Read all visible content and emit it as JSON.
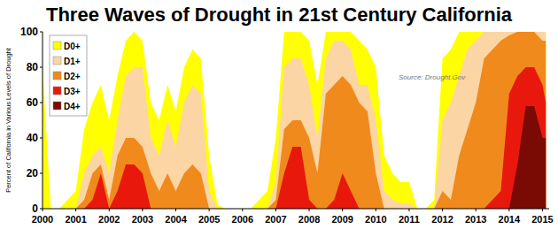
{
  "chart_data": {
    "type": "area",
    "title": "Three Waves of Drought in 21st Century California",
    "y_label": "Percent of California in Various Levels of Drought",
    "source": "Source: Drought.Gov",
    "stacked": false,
    "grid": false,
    "legend": "upper left",
    "x": [
      2000,
      2000.25,
      2000.5,
      2000.75,
      2001,
      2001.25,
      2001.5,
      2001.75,
      2002,
      2002.25,
      2002.5,
      2002.75,
      2003,
      2003.25,
      2003.5,
      2003.75,
      2004,
      2004.25,
      2004.5,
      2004.75,
      2005,
      2005.25,
      2005.5,
      2005.75,
      2006,
      2006.25,
      2006.5,
      2006.75,
      2007,
      2007.25,
      2007.5,
      2007.75,
      2008,
      2008.25,
      2008.5,
      2008.75,
      2009,
      2009.25,
      2009.5,
      2009.75,
      2010,
      2010.25,
      2010.5,
      2010.75,
      2011,
      2011.25,
      2011.5,
      2011.75,
      2012,
      2012.25,
      2012.5,
      2012.75,
      2013,
      2013.25,
      2013.5,
      2013.75,
      2014,
      2014.25,
      2014.5,
      2014.75,
      2015,
      2015.1
    ],
    "xlim": [
      2000,
      2015.2
    ],
    "xticks": [
      2000,
      2001,
      2002,
      2003,
      2004,
      2005,
      2006,
      2007,
      2008,
      2009,
      2010,
      2011,
      2012,
      2013,
      2014,
      2015
    ],
    "ylim": [
      0,
      100
    ],
    "yticks": [
      0,
      20,
      40,
      60,
      80,
      100
    ],
    "series": [
      {
        "name": "D0+",
        "color": "#ffff00",
        "values": [
          80,
          0,
          0,
          5,
          10,
          45,
          60,
          70,
          50,
          75,
          95,
          100,
          95,
          60,
          50,
          70,
          55,
          80,
          90,
          85,
          30,
          2,
          0,
          0,
          0,
          0,
          5,
          10,
          40,
          100,
          100,
          100,
          95,
          70,
          100,
          100,
          100,
          100,
          95,
          90,
          80,
          30,
          20,
          15,
          15,
          0,
          0,
          5,
          85,
          90,
          100,
          100,
          100,
          100,
          100,
          100,
          100,
          100,
          100,
          100,
          100,
          100
        ]
      },
      {
        "name": "D1+",
        "color": "#fcd5a4",
        "values": [
          0,
          0,
          0,
          0,
          0,
          20,
          30,
          35,
          20,
          50,
          75,
          80,
          80,
          40,
          30,
          50,
          35,
          60,
          70,
          65,
          10,
          0,
          0,
          0,
          0,
          0,
          0,
          0,
          15,
          80,
          85,
          85,
          70,
          40,
          85,
          95,
          95,
          90,
          70,
          70,
          50,
          10,
          5,
          3,
          3,
          0,
          0,
          0,
          50,
          60,
          75,
          90,
          95,
          100,
          100,
          100,
          100,
          100,
          100,
          100,
          100,
          100
        ]
      },
      {
        "name": "D2+",
        "color": "#f08a1c",
        "values": [
          0,
          0,
          0,
          0,
          0,
          5,
          20,
          25,
          5,
          30,
          40,
          40,
          35,
          20,
          10,
          20,
          10,
          20,
          25,
          20,
          0,
          0,
          0,
          0,
          0,
          0,
          0,
          0,
          5,
          45,
          50,
          50,
          40,
          20,
          65,
          70,
          75,
          70,
          60,
          55,
          20,
          0,
          0,
          0,
          0,
          0,
          0,
          0,
          10,
          5,
          30,
          45,
          60,
          85,
          90,
          95,
          98,
          100,
          100,
          100,
          95,
          95
        ]
      },
      {
        "name": "D3+",
        "color": "#e8180c",
        "values": [
          0,
          0,
          0,
          0,
          0,
          0,
          5,
          20,
          0,
          10,
          25,
          25,
          20,
          0,
          0,
          0,
          0,
          0,
          0,
          0,
          0,
          0,
          0,
          0,
          0,
          0,
          0,
          0,
          0,
          20,
          35,
          35,
          5,
          0,
          0,
          5,
          20,
          10,
          0,
          0,
          0,
          0,
          0,
          0,
          0,
          0,
          0,
          0,
          0,
          0,
          0,
          0,
          0,
          0,
          5,
          10,
          65,
          75,
          80,
          80,
          70,
          60
        ]
      },
      {
        "name": "D4+",
        "color": "#7a0a04",
        "values": [
          0,
          0,
          0,
          0,
          0,
          0,
          0,
          0,
          0,
          0,
          0,
          0,
          0,
          0,
          0,
          0,
          0,
          0,
          0,
          0,
          0,
          0,
          0,
          0,
          0,
          0,
          0,
          0,
          0,
          0,
          0,
          0,
          0,
          0,
          0,
          0,
          0,
          0,
          0,
          0,
          0,
          0,
          0,
          0,
          0,
          0,
          0,
          0,
          0,
          0,
          0,
          0,
          0,
          0,
          0,
          0,
          0,
          25,
          58,
          58,
          40,
          40
        ]
      }
    ]
  }
}
